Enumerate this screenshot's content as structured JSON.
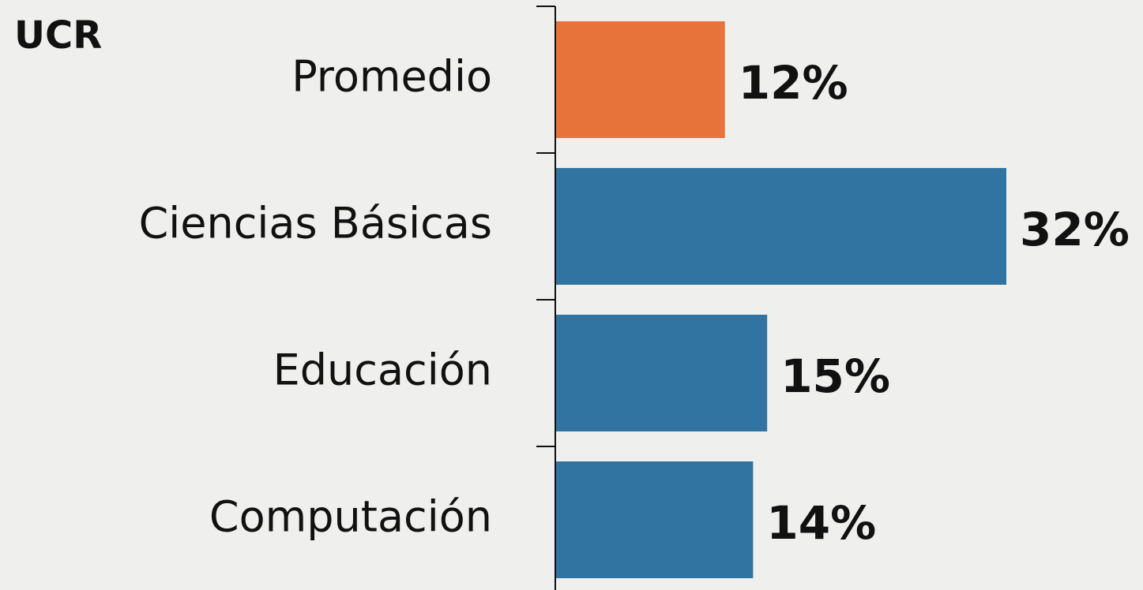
{
  "chart_data": {
    "type": "bar",
    "orientation": "horizontal",
    "title": "UCR",
    "categories": [
      "Promedio",
      "Ciencias Básicas",
      "Educación",
      "Computación"
    ],
    "values": [
      12,
      32,
      15,
      14
    ],
    "value_labels": [
      "12%",
      "32%",
      "15%",
      "14%"
    ],
    "colors": [
      "#e8733a",
      "#3274a1",
      "#3274a1",
      "#3274a1"
    ]
  }
}
